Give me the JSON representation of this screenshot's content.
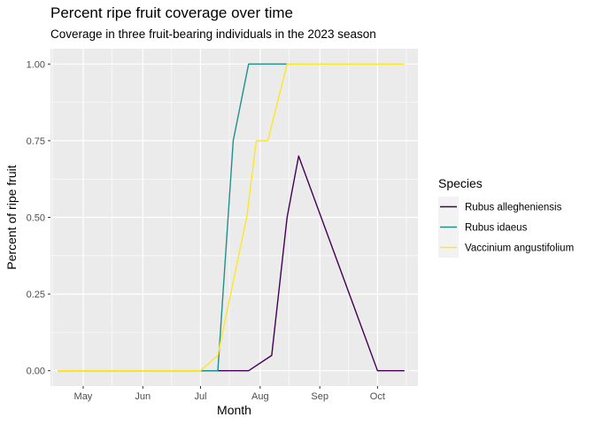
{
  "chart_data": {
    "type": "line",
    "title": "Percent ripe fruit coverage over time",
    "subtitle": "Coverage in three fruit-bearing individuals in the 2023 season",
    "xlabel": "Month",
    "ylabel": "Percent of ripe fruit",
    "x_ticks": [
      "May",
      "Jun",
      "Jul",
      "Aug",
      "Sep",
      "Oct"
    ],
    "x_tick_dates": [
      "2023-05-01",
      "2023-06-01",
      "2023-07-01",
      "2023-08-01",
      "2023-09-01",
      "2023-10-01"
    ],
    "xlim": [
      "2023-04-14",
      "2023-10-22"
    ],
    "y_ticks": [
      "0.00",
      "0.25",
      "0.50",
      "0.75",
      "1.00"
    ],
    "ylim": [
      -0.05,
      1.05
    ],
    "grid": true,
    "legend": {
      "title": "Species",
      "position": "right"
    },
    "series": [
      {
        "name": "Rubus allegheniensis",
        "color": "#440154",
        "points": [
          {
            "x": "2023-04-18",
            "y": 0.0
          },
          {
            "x": "2023-05-01",
            "y": 0.0
          },
          {
            "x": "2023-07-01",
            "y": 0.0
          },
          {
            "x": "2023-07-26",
            "y": 0.0
          },
          {
            "x": "2023-08-07",
            "y": 0.05
          },
          {
            "x": "2023-08-15",
            "y": 0.5
          },
          {
            "x": "2023-08-21",
            "y": 0.7
          },
          {
            "x": "2023-10-01",
            "y": 0.0
          },
          {
            "x": "2023-10-15",
            "y": 0.0
          }
        ]
      },
      {
        "name": "Rubus idaeus",
        "color": "#21908C",
        "points": [
          {
            "x": "2023-04-18",
            "y": 0.0
          },
          {
            "x": "2023-07-10",
            "y": 0.0
          },
          {
            "x": "2023-07-18",
            "y": 0.75
          },
          {
            "x": "2023-07-26",
            "y": 1.0
          },
          {
            "x": "2023-08-15",
            "y": 1.0
          }
        ]
      },
      {
        "name": "Vaccinium angustifolium",
        "color": "#FDE725",
        "points": [
          {
            "x": "2023-04-18",
            "y": 0.0
          },
          {
            "x": "2023-07-01",
            "y": 0.0
          },
          {
            "x": "2023-07-10",
            "y": 0.05
          },
          {
            "x": "2023-07-25",
            "y": 0.5
          },
          {
            "x": "2023-07-30",
            "y": 0.75
          },
          {
            "x": "2023-08-05",
            "y": 0.75
          },
          {
            "x": "2023-08-15",
            "y": 1.0
          },
          {
            "x": "2023-10-15",
            "y": 1.0
          }
        ]
      }
    ]
  }
}
